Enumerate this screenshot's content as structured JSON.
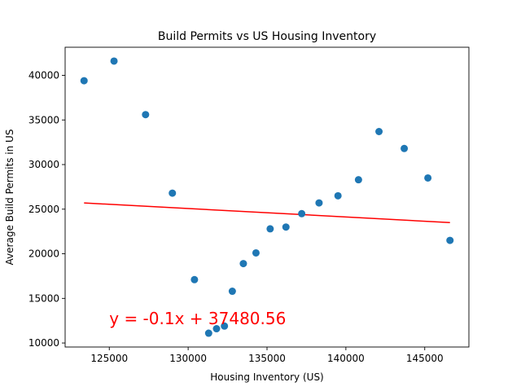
{
  "chart_data": {
    "type": "scatter",
    "title": "Build Permits vs US Housing Inventory",
    "xlabel": "Housing Inventory (US)",
    "ylabel": "Average Build Permits in US",
    "xlim": [
      122200,
      147800
    ],
    "ylim": [
      9550,
      43150
    ],
    "xticks": [
      125000,
      130000,
      135000,
      140000,
      145000
    ],
    "yticks": [
      10000,
      15000,
      20000,
      25000,
      30000,
      35000,
      40000
    ],
    "grid": false,
    "colors": {
      "points": "#1f77b4",
      "fit_line": "#ff0000",
      "equation": "#ff0000"
    },
    "points": [
      {
        "x": 123400,
        "y": 39400
      },
      {
        "x": 125300,
        "y": 41600
      },
      {
        "x": 127300,
        "y": 35600
      },
      {
        "x": 129000,
        "y": 26800
      },
      {
        "x": 130400,
        "y": 17100
      },
      {
        "x": 131300,
        "y": 11100
      },
      {
        "x": 131800,
        "y": 11600
      },
      {
        "x": 132300,
        "y": 11900
      },
      {
        "x": 132800,
        "y": 15800
      },
      {
        "x": 133500,
        "y": 18900
      },
      {
        "x": 134300,
        "y": 20100
      },
      {
        "x": 135200,
        "y": 22800
      },
      {
        "x": 136200,
        "y": 23000
      },
      {
        "x": 137200,
        "y": 24500
      },
      {
        "x": 138300,
        "y": 25700
      },
      {
        "x": 139500,
        "y": 26500
      },
      {
        "x": 140800,
        "y": 28300
      },
      {
        "x": 142100,
        "y": 33700
      },
      {
        "x": 143700,
        "y": 31800
      },
      {
        "x": 145200,
        "y": 28500
      },
      {
        "x": 146600,
        "y": 21500
      }
    ],
    "regression": {
      "x_start": 123400,
      "y_start": 25700,
      "x_end": 146600,
      "y_end": 23500,
      "equation": "y = -0.1x + 37480.56",
      "equation_x": 125000,
      "equation_y": 12750
    }
  }
}
